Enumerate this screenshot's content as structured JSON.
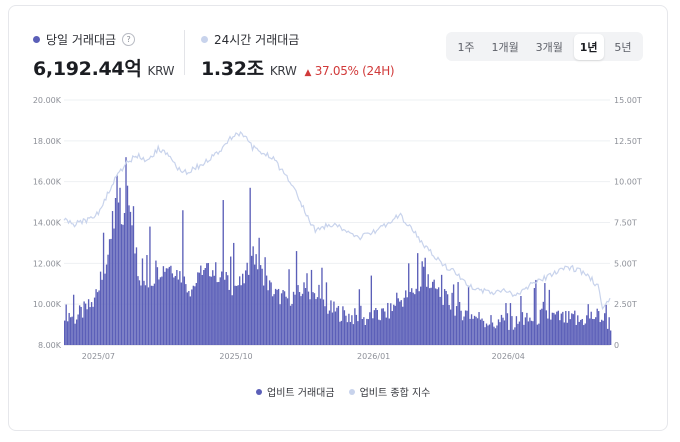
{
  "today_volume": {
    "label": "당일 거래대금",
    "help": "?",
    "value": "6,192.44억",
    "unit": "KRW",
    "color": "#5b5fb8"
  },
  "volume_24h": {
    "label": "24시간 거래대금",
    "value": "1.32조",
    "unit": "KRW",
    "change": "37.05% (24H)",
    "change_symbol": "▲",
    "change_color": "#d13a3a",
    "color": "#c8d3ec"
  },
  "periods": [
    {
      "label": "1주",
      "active": false
    },
    {
      "label": "1개월",
      "active": false
    },
    {
      "label": "3개월",
      "active": false
    },
    {
      "label": "1년",
      "active": true
    },
    {
      "label": "5년",
      "active": false
    }
  ],
  "chart_data": {
    "type": "bar",
    "x_range": [
      "2025-06-08",
      "2026-06-08"
    ],
    "x_ticks": [
      {
        "label": "2025/07",
        "date": "2025-07-01"
      },
      {
        "label": "2025/10",
        "date": "2025-10-01"
      },
      {
        "label": "2026/01",
        "date": "2026-01-01"
      },
      {
        "label": "2026/04",
        "date": "2026-04-01"
      }
    ],
    "y_left": {
      "ticks": [
        "8.00K",
        "10.00K",
        "12.00K",
        "14.00K",
        "16.00K",
        "18.00K",
        "20.00K"
      ],
      "range": [
        8000,
        20000
      ],
      "unit_note": "억 KRW"
    },
    "y_right": {
      "ticks": [
        "0",
        "2.50T",
        "5.00T",
        "7.50T",
        "10.00T",
        "12.50T",
        "15.00T"
      ],
      "range": [
        0,
        15
      ]
    },
    "grid": true,
    "legend": "bottom-center",
    "series": [
      {
        "name": "업비트 거래대금",
        "type": "bar",
        "axis": "left",
        "color": "#5b5fb8",
        "anchors": [
          [
            "2025-06-08",
            9600
          ],
          [
            "2025-06-15",
            9300
          ],
          [
            "2025-06-22",
            9700
          ],
          [
            "2025-06-29",
            10100
          ],
          [
            "2025-07-06",
            12200
          ],
          [
            "2025-07-10",
            13200
          ],
          [
            "2025-07-13",
            14800
          ],
          [
            "2025-07-17",
            13600
          ],
          [
            "2025-07-20",
            15800
          ],
          [
            "2025-07-24",
            12800
          ],
          [
            "2025-07-28",
            11300
          ],
          [
            "2025-08-03",
            10800
          ],
          [
            "2025-08-10",
            11600
          ],
          [
            "2025-08-17",
            11900
          ],
          [
            "2025-08-24",
            11400
          ],
          [
            "2025-08-31",
            10700
          ],
          [
            "2025-09-07",
            11300
          ],
          [
            "2025-09-14",
            11700
          ],
          [
            "2025-09-21",
            11200
          ],
          [
            "2025-09-28",
            10800
          ],
          [
            "2025-10-05",
            11000
          ],
          [
            "2025-10-12",
            12300
          ],
          [
            "2025-10-19",
            11300
          ],
          [
            "2025-10-26",
            10500
          ],
          [
            "2025-11-02",
            10200
          ],
          [
            "2025-11-09",
            10400
          ],
          [
            "2025-11-16",
            10700
          ],
          [
            "2025-11-23",
            10200
          ],
          [
            "2025-11-30",
            9800
          ],
          [
            "2025-12-07",
            9600
          ],
          [
            "2025-12-14",
            9400
          ],
          [
            "2025-12-21",
            9300
          ],
          [
            "2025-12-28",
            9200
          ],
          [
            "2026-01-04",
            9400
          ],
          [
            "2026-01-11",
            9600
          ],
          [
            "2026-01-18",
            10100
          ],
          [
            "2026-01-25",
            10500
          ],
          [
            "2026-02-01",
            10700
          ],
          [
            "2026-02-08",
            10900
          ],
          [
            "2026-02-15",
            10400
          ],
          [
            "2026-02-22",
            9900
          ],
          [
            "2026-03-01",
            9600
          ],
          [
            "2026-03-08",
            9400
          ],
          [
            "2026-03-15",
            9200
          ],
          [
            "2026-03-22",
            9000
          ],
          [
            "2026-03-29",
            9100
          ],
          [
            "2026-04-05",
            9000
          ],
          [
            "2026-04-12",
            9100
          ],
          [
            "2026-04-19",
            9300
          ],
          [
            "2026-04-26",
            9400
          ],
          [
            "2026-05-03",
            9300
          ],
          [
            "2026-05-10",
            9200
          ],
          [
            "2026-05-17",
            9100
          ],
          [
            "2026-05-24",
            9300
          ],
          [
            "2026-05-31",
            9400
          ],
          [
            "2026-06-08",
            9000
          ]
        ],
        "peaks": [
          [
            "2025-07-04",
            13500
          ],
          [
            "2025-07-12",
            15200
          ],
          [
            "2025-07-15",
            15700
          ],
          [
            "2025-07-19",
            17200
          ],
          [
            "2025-07-24",
            14800
          ],
          [
            "2025-08-04",
            13800
          ],
          [
            "2025-08-26",
            14600
          ],
          [
            "2025-09-22",
            15100
          ],
          [
            "2025-09-29",
            13000
          ],
          [
            "2025-10-10",
            15700
          ],
          [
            "2025-10-20",
            12300
          ],
          [
            "2025-11-10",
            12600
          ],
          [
            "2025-12-30",
            11400
          ],
          [
            "2026-01-24",
            12000
          ],
          [
            "2026-01-30",
            12500
          ],
          [
            "2026-02-02",
            12100
          ],
          [
            "2026-03-05",
            10900
          ],
          [
            "2026-04-09",
            10400
          ],
          [
            "2026-05-24",
            10000
          ]
        ]
      },
      {
        "name": "업비트 종합 지수",
        "type": "line",
        "axis": "right",
        "color": "#c8d3ec",
        "points": [
          [
            "2025-06-08",
            7.7
          ],
          [
            "2025-06-15",
            7.4
          ],
          [
            "2025-06-22",
            7.6
          ],
          [
            "2025-06-29",
            7.8
          ],
          [
            "2025-07-06",
            9.0
          ],
          [
            "2025-07-13",
            10.3
          ],
          [
            "2025-07-20",
            11.2
          ],
          [
            "2025-07-27",
            11.6
          ],
          [
            "2025-08-03",
            11.3
          ],
          [
            "2025-08-10",
            12.0
          ],
          [
            "2025-08-17",
            11.6
          ],
          [
            "2025-08-24",
            10.7
          ],
          [
            "2025-08-31",
            10.6
          ],
          [
            "2025-09-07",
            11.0
          ],
          [
            "2025-09-14",
            11.5
          ],
          [
            "2025-09-21",
            12.0
          ],
          [
            "2025-09-28",
            12.7
          ],
          [
            "2025-10-05",
            13.0
          ],
          [
            "2025-10-12",
            12.1
          ],
          [
            "2025-10-19",
            11.8
          ],
          [
            "2025-10-26",
            11.4
          ],
          [
            "2025-11-02",
            10.5
          ],
          [
            "2025-11-09",
            9.5
          ],
          [
            "2025-11-16",
            8.2
          ],
          [
            "2025-11-23",
            7.0
          ],
          [
            "2025-11-30",
            7.3
          ],
          [
            "2025-12-07",
            7.4
          ],
          [
            "2025-12-14",
            7.0
          ],
          [
            "2025-12-21",
            6.6
          ],
          [
            "2025-12-28",
            6.7
          ],
          [
            "2026-01-04",
            7.1
          ],
          [
            "2026-01-11",
            7.5
          ],
          [
            "2026-01-18",
            8.0
          ],
          [
            "2026-01-25",
            7.3
          ],
          [
            "2026-02-01",
            6.4
          ],
          [
            "2026-02-08",
            5.7
          ],
          [
            "2026-02-15",
            5.0
          ],
          [
            "2026-02-22",
            4.6
          ],
          [
            "2026-03-01",
            4.0
          ],
          [
            "2026-03-08",
            3.5
          ],
          [
            "2026-03-15",
            3.3
          ],
          [
            "2026-03-22",
            3.2
          ],
          [
            "2026-03-29",
            3.5
          ],
          [
            "2026-04-05",
            3.1
          ],
          [
            "2026-04-12",
            3.4
          ],
          [
            "2026-04-19",
            3.9
          ],
          [
            "2026-04-26",
            4.1
          ],
          [
            "2026-05-03",
            4.5
          ],
          [
            "2026-05-10",
            4.8
          ],
          [
            "2026-05-17",
            4.6
          ],
          [
            "2026-05-24",
            4.3
          ],
          [
            "2026-05-31",
            3.6
          ],
          [
            "2026-06-03",
            2.3
          ],
          [
            "2026-06-08",
            2.7
          ]
        ]
      }
    ]
  }
}
